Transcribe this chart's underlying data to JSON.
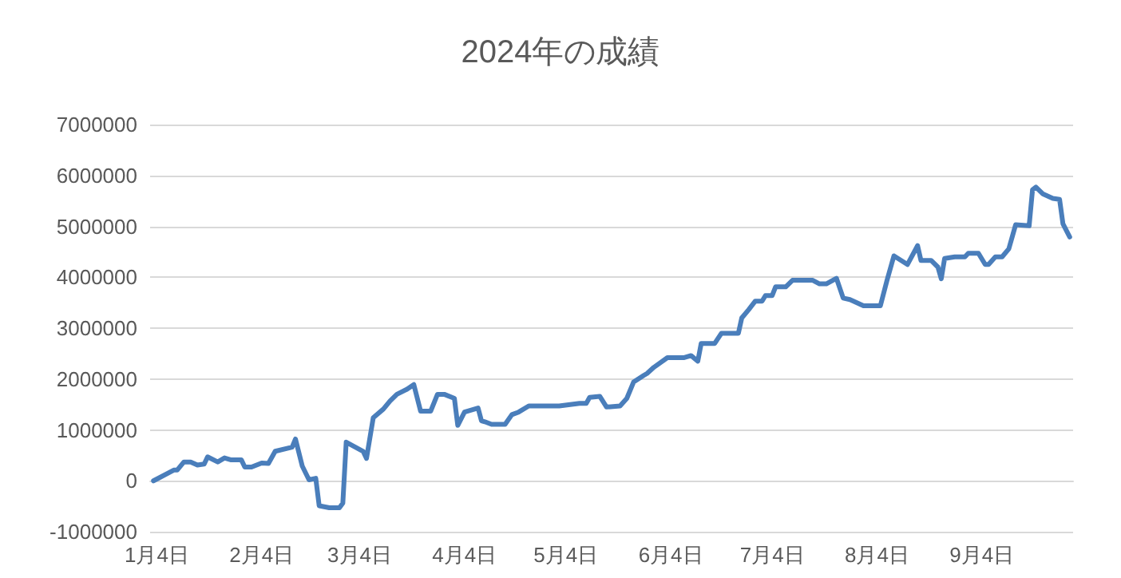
{
  "chart_data": {
    "type": "line",
    "title": "2024年の成績",
    "x": [
      "2024-01-03",
      "2024-01-09",
      "2024-01-10",
      "2024-01-12",
      "2024-01-14",
      "2024-01-16",
      "2024-01-18",
      "2024-01-19",
      "2024-01-22",
      "2024-01-24",
      "2024-01-26",
      "2024-01-29",
      "2024-01-30",
      "2024-02-01",
      "2024-02-04",
      "2024-02-06",
      "2024-02-08",
      "2024-02-13",
      "2024-02-14",
      "2024-02-16",
      "2024-02-18",
      "2024-02-20",
      "2024-02-21",
      "2024-02-24",
      "2024-02-27",
      "2024-02-28",
      "2024-02-29",
      "2024-03-05",
      "2024-03-06",
      "2024-03-08",
      "2024-03-11",
      "2024-03-13",
      "2024-03-15",
      "2024-03-18",
      "2024-03-20",
      "2024-03-22",
      "2024-03-25",
      "2024-03-27",
      "2024-03-29",
      "2024-04-01",
      "2024-04-02",
      "2024-04-04",
      "2024-04-08",
      "2024-04-09",
      "2024-04-10",
      "2024-04-12",
      "2024-04-16",
      "2024-04-18",
      "2024-04-20",
      "2024-04-23",
      "2024-05-02",
      "2024-05-08",
      "2024-05-10",
      "2024-05-11",
      "2024-05-14",
      "2024-05-16",
      "2024-05-20",
      "2024-05-22",
      "2024-05-24",
      "2024-05-27",
      "2024-05-28",
      "2024-05-30",
      "2024-06-03",
      "2024-06-08",
      "2024-06-10",
      "2024-06-12",
      "2024-06-13",
      "2024-06-17",
      "2024-06-19",
      "2024-06-24",
      "2024-06-25",
      "2024-06-27",
      "2024-06-29",
      "2024-07-01",
      "2024-07-02",
      "2024-07-04",
      "2024-07-05",
      "2024-07-08",
      "2024-07-10",
      "2024-07-16",
      "2024-07-18",
      "2024-07-20",
      "2024-07-23",
      "2024-07-25",
      "2024-07-27",
      "2024-07-31",
      "2024-08-05",
      "2024-08-07",
      "2024-08-09",
      "2024-08-13",
      "2024-08-16",
      "2024-08-17",
      "2024-08-20",
      "2024-08-22",
      "2024-08-23",
      "2024-08-24",
      "2024-08-27",
      "2024-08-30",
      "2024-08-31",
      "2024-09-03",
      "2024-09-05",
      "2024-09-06",
      "2024-09-08",
      "2024-09-10",
      "2024-09-12",
      "2024-09-14",
      "2024-09-18",
      "2024-09-19",
      "2024-09-20",
      "2024-09-22",
      "2024-09-25",
      "2024-09-27",
      "2024-09-28",
      "2024-09-30"
    ],
    "series": [
      {
        "color": "#4a7ebb",
        "values": [
          0,
          210000,
          210000,
          370000,
          370000,
          310000,
          330000,
          470000,
          370000,
          450000,
          410000,
          410000,
          270000,
          270000,
          350000,
          340000,
          580000,
          660000,
          820000,
          290000,
          20000,
          50000,
          -490000,
          -530000,
          -530000,
          -440000,
          760000,
          580000,
          440000,
          1240000,
          1410000,
          1570000,
          1700000,
          1800000,
          1890000,
          1370000,
          1370000,
          1700000,
          1700000,
          1620000,
          1090000,
          1350000,
          1430000,
          1180000,
          1160000,
          1110000,
          1110000,
          1300000,
          1350000,
          1470000,
          1470000,
          1520000,
          1520000,
          1640000,
          1660000,
          1450000,
          1470000,
          1620000,
          1940000,
          2070000,
          2110000,
          2230000,
          2420000,
          2420000,
          2460000,
          2350000,
          2700000,
          2700000,
          2900000,
          2900000,
          3200000,
          3360000,
          3530000,
          3530000,
          3640000,
          3640000,
          3810000,
          3810000,
          3940000,
          3940000,
          3870000,
          3870000,
          3980000,
          3590000,
          3560000,
          3440000,
          3440000,
          3950000,
          4420000,
          4250000,
          4620000,
          4330000,
          4330000,
          4200000,
          3970000,
          4370000,
          4400000,
          4400000,
          4470000,
          4470000,
          4250000,
          4250000,
          4400000,
          4400000,
          4560000,
          5030000,
          5010000,
          5720000,
          5770000,
          5640000,
          5550000,
          5530000,
          5050000,
          4790000
        ]
      }
    ],
    "xlim": [
      "2024-01-02",
      "2024-10-01"
    ],
    "xticks": [
      {
        "value": "2024-01-04",
        "label": "1月4日"
      },
      {
        "value": "2024-02-04",
        "label": "2月4日"
      },
      {
        "value": "2024-03-04",
        "label": "3月4日"
      },
      {
        "value": "2024-04-04",
        "label": "4月4日"
      },
      {
        "value": "2024-05-04",
        "label": "5月4日"
      },
      {
        "value": "2024-06-04",
        "label": "6月4日"
      },
      {
        "value": "2024-07-04",
        "label": "7月4日"
      },
      {
        "value": "2024-08-04",
        "label": "8月4日"
      },
      {
        "value": "2024-09-04",
        "label": "9月4日"
      }
    ],
    "ylim": [
      -1000000,
      7000000
    ],
    "yticks": [
      -1000000,
      0,
      1000000,
      2000000,
      3000000,
      4000000,
      5000000,
      6000000,
      7000000
    ],
    "grid": "y",
    "marker": "none",
    "line_style": "solid"
  }
}
